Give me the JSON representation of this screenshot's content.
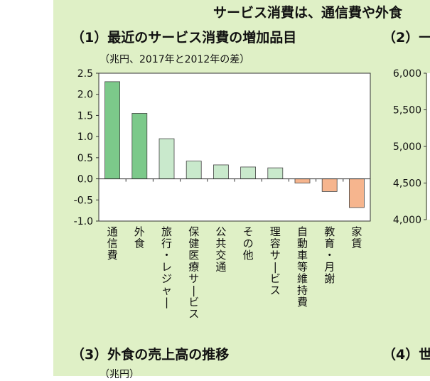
{
  "header": {
    "main_title": "サービス消費は、通信費や外食",
    "section1_title": "（1）最近のサービス消費の増加品目",
    "section2_title": "（2）一",
    "section3_title": "（3）外食の売上高の推移",
    "section4_title": "（4）世",
    "section3_unit": "（兆円）"
  },
  "chart_data": [
    {
      "type": "bar",
      "title": "（1）最近のサービス消費の増加品目",
      "ylabel": "（兆円、2017年と2012年の差）",
      "ylim": [
        -1.0,
        2.5
      ],
      "yticks": [
        "2.5",
        "2.0",
        "1.5",
        "1.0",
        "0.5",
        "0.0",
        "-0.5",
        "-1.0"
      ],
      "categories": [
        "通信費",
        "外食",
        "旅行・レジャー",
        "保健医療サービス",
        "公共交通",
        "その他",
        "理容サービス",
        "自動車等維持費",
        "教育・月謝",
        "家賃"
      ],
      "values": [
        2.3,
        1.55,
        0.95,
        0.42,
        0.33,
        0.28,
        0.26,
        -0.1,
        -0.3,
        -0.68
      ],
      "colors": [
        "#7cc98a",
        "#7cc98a",
        "#c9e9cc",
        "#c9e9cc",
        "#c9e9cc",
        "#c9e9cc",
        "#c9e9cc",
        "#f6b58e",
        "#f6b58e",
        "#f6b58e"
      ],
      "grid": false
    },
    {
      "type": "line",
      "title": "（2）一",
      "ylim": [
        4000,
        6000
      ],
      "yticks": [
        "6,000",
        "5,500",
        "5,000",
        "4,500",
        "4,000"
      ]
    }
  ]
}
